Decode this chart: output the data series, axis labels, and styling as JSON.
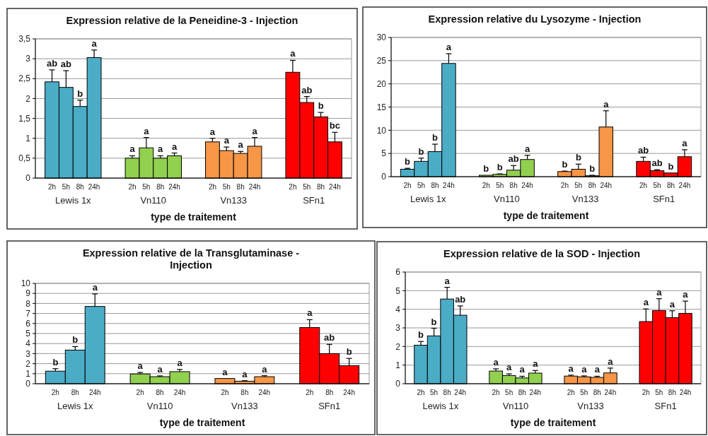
{
  "chart_data": [
    {
      "type": "bar",
      "title": "Expression relative de la Peneidine-3 - Injection",
      "xlabel": "type de traitement",
      "categories": [
        "Lewis 1x",
        "Vn110",
        "Vn133",
        "SFn1"
      ],
      "ylim": [
        0,
        3.5
      ],
      "yticks": [
        0,
        {
          "value": 0.5,
          "label": "0,5"
        },
        1,
        {
          "value": 1.5,
          "label": "1,5"
        },
        2,
        {
          "value": 2.5,
          "label": "2,5"
        },
        3,
        {
          "value": 3.5,
          "label": "3,5"
        }
      ],
      "grid": "y",
      "series": [
        {
          "name": "2h",
          "colors": [
            "#4bacc6",
            "#92d050",
            "#f79646",
            "#ff0000"
          ],
          "values": [
            2.42,
            0.5,
            0.91,
            2.66
          ],
          "errors": [
            [
              2.42,
              2.72
            ],
            [
              0.5,
              0.56
            ],
            [
              0.91,
              1.0
            ],
            [
              2.66,
              2.96
            ]
          ],
          "value_labels": [
            "ab",
            "a",
            "a",
            "a"
          ]
        },
        {
          "name": "5h",
          "colors": [
            "#4bacc6",
            "#92d050",
            "#f79646",
            "#ff0000"
          ],
          "values": [
            2.28,
            0.76,
            0.69,
            1.9
          ],
          "errors": [
            [
              2.28,
              2.7
            ],
            [
              0.76,
              1.02
            ],
            [
              0.69,
              0.78
            ],
            [
              1.9,
              2.05
            ]
          ],
          "value_labels": [
            "ab",
            "a",
            "a",
            "ab"
          ]
        },
        {
          "name": "8h",
          "colors": [
            "#4bacc6",
            "#92d050",
            "#f79646",
            "#ff0000"
          ],
          "values": [
            1.8,
            0.5,
            0.62,
            1.54
          ],
          "errors": [
            [
              1.8,
              1.96
            ],
            [
              0.5,
              0.56
            ],
            [
              0.62,
              0.67
            ],
            [
              1.54,
              1.65
            ]
          ],
          "value_labels": [
            "b",
            "a",
            "a",
            "b"
          ]
        },
        {
          "name": "24h",
          "colors": [
            "#4bacc6",
            "#92d050",
            "#f79646",
            "#ff0000"
          ],
          "values": [
            3.03,
            0.56,
            0.8,
            0.91
          ],
          "errors": [
            [
              3.03,
              3.22
            ],
            [
              0.56,
              0.63
            ],
            [
              0.8,
              1.02
            ],
            [
              0.91,
              1.15
            ]
          ],
          "value_labels": [
            "a",
            "a",
            "a",
            "bc"
          ]
        }
      ]
    },
    {
      "type": "bar",
      "title": "Expression relative  du Lysozyme - Injection",
      "xlabel": "type de traitement",
      "categories": [
        "Lewis 1x",
        "Vn110",
        "Vn133",
        "SFn1"
      ],
      "ylim": [
        0,
        30
      ],
      "yticks": [
        0,
        5,
        10,
        15,
        20,
        25,
        30
      ],
      "grid": "y",
      "series": [
        {
          "name": "2h",
          "colors": [
            "#4bacc6",
            "#92d050",
            "#f79646",
            "#ff0000"
          ],
          "values": [
            1.6,
            0.3,
            1.1,
            3.3
          ],
          "errors": [
            [
              1.6,
              1.8
            ],
            null,
            [
              1.1,
              1.2
            ],
            [
              3.3,
              4.2
            ]
          ],
          "value_labels": [
            "b",
            "b",
            "b",
            "ab"
          ]
        },
        {
          "name": "5h",
          "colors": [
            "#4bacc6",
            "#92d050",
            "#f79646",
            "#ff0000"
          ],
          "values": [
            3.3,
            0.5,
            1.6,
            1.3
          ],
          "errors": [
            [
              3.3,
              4.0
            ],
            [
              0.5,
              0.6
            ],
            [
              1.6,
              2.7
            ],
            [
              1.3,
              1.5
            ]
          ],
          "value_labels": [
            "b",
            "b",
            "b",
            "ab"
          ]
        },
        {
          "name": "8h",
          "colors": [
            "#4bacc6",
            "#92d050",
            "#f79646",
            "#ff0000"
          ],
          "values": [
            5.4,
            1.4,
            0.2,
            0.8
          ],
          "errors": [
            [
              5.4,
              7.0
            ],
            [
              1.4,
              2.4
            ],
            [
              0.2,
              0.3
            ],
            null
          ],
          "value_labels": [
            "b",
            "ab",
            "b",
            "b"
          ]
        },
        {
          "name": "24h",
          "colors": [
            "#4bacc6",
            "#92d050",
            "#f79646",
            "#ff0000"
          ],
          "values": [
            24.4,
            3.7,
            10.7,
            4.3
          ],
          "errors": [
            [
              24.4,
              26.5
            ],
            [
              3.7,
              4.6
            ],
            [
              10.7,
              14.2
            ],
            [
              4.3,
              5.8
            ]
          ],
          "value_labels": [
            "a",
            "a",
            "a",
            "a"
          ]
        }
      ]
    },
    {
      "type": "bar",
      "title": "Expression relative de la Transglutaminase - Injection",
      "xlabel": "type de traitement",
      "categories": [
        "Lewis 1x",
        "Vn110",
        "Vn133",
        "SFn1"
      ],
      "ylim": [
        0,
        10
      ],
      "yticks": [
        0,
        1,
        2,
        3,
        4,
        5,
        6,
        7,
        8,
        9,
        10
      ],
      "grid": "y",
      "series": [
        {
          "name": "2h",
          "colors": [
            "#4bacc6",
            "#92d050",
            "#f79646",
            "#ff0000"
          ],
          "values": [
            1.25,
            0.97,
            0.52,
            5.6
          ],
          "errors": [
            [
              1.25,
              1.5
            ],
            [
              0.97,
              1.12
            ],
            null,
            [
              5.6,
              6.38
            ]
          ],
          "value_labels": [
            "b",
            "a",
            "a",
            "a"
          ]
        },
        {
          "name": "8h",
          "colors": [
            "#4bacc6",
            "#92d050",
            "#f79646",
            "#ff0000"
          ],
          "values": [
            3.35,
            0.7,
            0.25,
            3.0
          ],
          "errors": [
            [
              3.35,
              3.7
            ],
            [
              0.7,
              0.78
            ],
            [
              0.25,
              0.3
            ],
            [
              3.0,
              3.92
            ]
          ],
          "value_labels": [
            "b",
            "a",
            "a",
            "ab"
          ]
        },
        {
          "name": "24h",
          "colors": [
            "#4bacc6",
            "#92d050",
            "#f79646",
            "#ff0000"
          ],
          "values": [
            7.7,
            1.2,
            0.7,
            1.8
          ],
          "errors": [
            [
              7.7,
              8.95
            ],
            [
              1.2,
              1.42
            ],
            [
              0.7,
              0.8
            ],
            [
              1.8,
              2.52
            ]
          ],
          "value_labels": [
            "a",
            "a",
            "a",
            "b"
          ]
        }
      ]
    },
    {
      "type": "bar",
      "title": "Expression relative de la SOD - Injection",
      "xlabel": "type de traitement",
      "categories": [
        "Lewis 1x",
        "Vn110",
        "Vn133",
        "SFn1"
      ],
      "ylim": [
        0,
        6
      ],
      "yticks": [
        0,
        1,
        2,
        3,
        4,
        5,
        6
      ],
      "grid": "y",
      "series": [
        {
          "name": "2h",
          "colors": [
            "#4bacc6",
            "#92d050",
            "#f79646",
            "#ff0000"
          ],
          "values": [
            2.07,
            0.68,
            0.41,
            3.34
          ],
          "errors": [
            [
              2.07,
              2.27
            ],
            [
              0.68,
              0.8
            ],
            [
              0.41,
              0.46
            ],
            [
              3.34,
              4.02
            ]
          ],
          "value_labels": [
            "b",
            "a",
            "a",
            "a"
          ]
        },
        {
          "name": "5h",
          "colors": [
            "#4bacc6",
            "#92d050",
            "#f79646",
            "#ff0000"
          ],
          "values": [
            2.57,
            0.44,
            0.37,
            3.93
          ],
          "errors": [
            [
              2.57,
              2.98
            ],
            [
              0.44,
              0.53
            ],
            [
              0.37,
              0.42
            ],
            [
              3.93,
              4.57
            ]
          ],
          "value_labels": [
            "b",
            "a",
            "a",
            "a"
          ]
        },
        {
          "name": "8h",
          "colors": [
            "#4bacc6",
            "#92d050",
            "#f79646",
            "#ff0000"
          ],
          "values": [
            4.55,
            0.31,
            0.34,
            3.55
          ],
          "errors": [
            [
              4.55,
              5.18
            ],
            [
              0.31,
              0.4
            ],
            [
              0.34,
              0.4
            ],
            [
              3.55,
              3.92
            ]
          ],
          "value_labels": [
            "a",
            "a",
            "a",
            "a"
          ]
        },
        {
          "name": "24h",
          "colors": [
            "#4bacc6",
            "#92d050",
            "#f79646",
            "#ff0000"
          ],
          "values": [
            3.68,
            0.57,
            0.58,
            3.78
          ],
          "errors": [
            [
              3.68,
              4.18
            ],
            [
              0.57,
              0.71
            ],
            [
              0.58,
              0.84
            ],
            [
              3.78,
              4.44
            ]
          ],
          "value_labels": [
            "ab",
            "a",
            "a",
            "a"
          ]
        }
      ]
    }
  ]
}
